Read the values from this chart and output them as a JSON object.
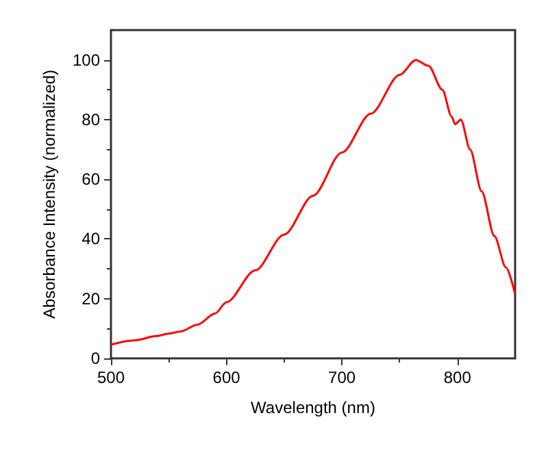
{
  "chart_data": {
    "type": "line",
    "xlabel": "Wavelength (nm)",
    "ylabel": "Absorbance Intensity (normalized)",
    "x": [
      500,
      520,
      540,
      550,
      560,
      575,
      590,
      600,
      625,
      650,
      675,
      700,
      725,
      750,
      764,
      775,
      787,
      795,
      798,
      803,
      811,
      821,
      832,
      842,
      850
    ],
    "series": [
      {
        "color": "#ff0000",
        "values": [
          4.6,
          6,
          7.5,
          8.3,
          9,
          11.3,
          15,
          18.8,
          29.5,
          41.5,
          54.5,
          69,
          82,
          95,
          100,
          98,
          90,
          81,
          78.5,
          80,
          70,
          56,
          41,
          30.5,
          21.5
        ]
      }
    ],
    "xlim": [
      500,
      850
    ],
    "xticks": [
      500,
      600,
      700,
      800
    ],
    "ylim": [
      0,
      110
    ],
    "yticks": [
      0,
      20,
      40,
      60,
      80,
      100
    ],
    "grid": false,
    "marker": "none",
    "line_style": "solid"
  }
}
